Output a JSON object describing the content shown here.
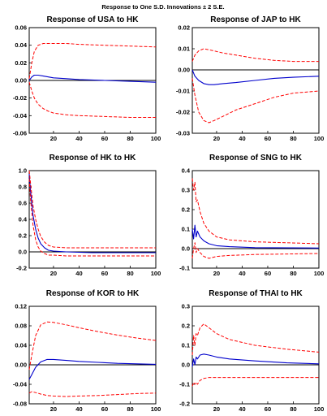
{
  "title": "Response to One S.D. Innovations ± 2 S.E.",
  "colors": {
    "response": "#0000cc",
    "band": "#ff0000",
    "zero": "#000000",
    "frame": "#000000"
  },
  "chart_data": [
    {
      "type": "line",
      "title": "Response of USA to HK",
      "x_ticks": [
        20,
        40,
        60,
        80,
        100
      ],
      "y_ticks": [
        -0.06,
        -0.04,
        -0.02,
        0.0,
        0.02,
        0.04,
        0.06
      ],
      "y_tick_labels": [
        "-0.06",
        "-0.04",
        "-0.02",
        "0.00",
        "0.02",
        "0.04",
        "0.06"
      ],
      "xlim": [
        1,
        100
      ],
      "ylim": [
        -0.06,
        0.06
      ],
      "x": [
        1,
        3,
        5,
        8,
        12,
        16,
        20,
        30,
        40,
        60,
        80,
        100
      ],
      "series": [
        {
          "role": "response",
          "values": [
            0.0,
            0.004,
            0.006,
            0.006,
            0.005,
            0.004,
            0.003,
            0.002,
            0.001,
            0.0,
            -0.001,
            -0.002
          ]
        },
        {
          "role": "upper",
          "values": [
            0.002,
            0.02,
            0.033,
            0.04,
            0.042,
            0.042,
            0.042,
            0.042,
            0.041,
            0.04,
            0.039,
            0.038
          ]
        },
        {
          "role": "lower",
          "values": [
            -0.002,
            -0.012,
            -0.02,
            -0.027,
            -0.032,
            -0.035,
            -0.037,
            -0.039,
            -0.04,
            -0.041,
            -0.042,
            -0.042
          ]
        }
      ]
    },
    {
      "type": "line",
      "title": "Response of JAP to HK",
      "x_ticks": [
        20,
        40,
        60,
        80,
        100
      ],
      "y_ticks": [
        -0.03,
        -0.02,
        -0.01,
        0.0,
        0.01,
        0.02
      ],
      "y_tick_labels": [
        "-0.03",
        "-0.02",
        "-0.01",
        "0.00",
        "0.01",
        "0.02"
      ],
      "xlim": [
        1,
        100
      ],
      "ylim": [
        -0.03,
        0.02
      ],
      "x": [
        1,
        3,
        6,
        10,
        14,
        18,
        25,
        35,
        50,
        65,
        80,
        100
      ],
      "series": [
        {
          "role": "response",
          "values": [
            0.0,
            -0.003,
            -0.005,
            -0.0065,
            -0.007,
            -0.007,
            -0.0065,
            -0.006,
            -0.005,
            -0.004,
            -0.0035,
            -0.003
          ]
        },
        {
          "role": "upper",
          "values": [
            0.004,
            0.007,
            0.009,
            0.01,
            0.0095,
            0.009,
            0.008,
            0.007,
            0.0055,
            0.0045,
            0.004,
            0.004
          ]
        },
        {
          "role": "lower",
          "values": [
            -0.004,
            -0.012,
            -0.02,
            -0.024,
            -0.025,
            -0.024,
            -0.022,
            -0.019,
            -0.016,
            -0.013,
            -0.011,
            -0.01
          ]
        }
      ]
    },
    {
      "type": "line",
      "title": "Response of HK to HK",
      "x_ticks": [
        20,
        40,
        60,
        80,
        100
      ],
      "y_ticks": [
        -0.2,
        0.0,
        0.2,
        0.4,
        0.6,
        0.8,
        1.0
      ],
      "y_tick_labels": [
        "-0.2",
        "0.0",
        "0.2",
        "0.4",
        "0.6",
        "0.8",
        "1.0"
      ],
      "xlim": [
        1,
        100
      ],
      "ylim": [
        -0.2,
        1.0
      ],
      "x": [
        1,
        2,
        4,
        6,
        8,
        10,
        13,
        16,
        20,
        30,
        50,
        100
      ],
      "series": [
        {
          "role": "response",
          "values": [
            0.96,
            0.75,
            0.45,
            0.28,
            0.17,
            0.1,
            0.05,
            0.02,
            0.01,
            0.0,
            -0.01,
            -0.01
          ]
        },
        {
          "role": "upper",
          "values": [
            1.0,
            0.85,
            0.57,
            0.4,
            0.28,
            0.19,
            0.12,
            0.08,
            0.06,
            0.05,
            0.05,
            0.05
          ]
        },
        {
          "role": "lower",
          "values": [
            0.9,
            0.65,
            0.33,
            0.15,
            0.06,
            0.01,
            -0.02,
            -0.04,
            -0.04,
            -0.05,
            -0.05,
            -0.05
          ]
        }
      ]
    },
    {
      "type": "line",
      "title": "Response of SNG to HK",
      "x_ticks": [
        20,
        40,
        60,
        80,
        100
      ],
      "y_ticks": [
        -0.1,
        0.0,
        0.1,
        0.2,
        0.3,
        0.4
      ],
      "y_tick_labels": [
        "-0.1",
        "0.0",
        "0.1",
        "0.2",
        "0.3",
        "0.4"
      ],
      "xlim": [
        1,
        100
      ],
      "ylim": [
        -0.1,
        0.4
      ],
      "x": [
        1,
        2,
        3,
        4,
        5,
        7,
        10,
        14,
        20,
        30,
        50,
        100
      ],
      "series": [
        {
          "role": "response",
          "values": [
            0.1,
            0.05,
            0.12,
            0.06,
            0.09,
            0.06,
            0.04,
            0.025,
            0.015,
            0.01,
            0.005,
            0.003
          ]
        },
        {
          "role": "upper",
          "values": [
            0.36,
            0.3,
            0.34,
            0.24,
            0.25,
            0.19,
            0.13,
            0.09,
            0.06,
            0.045,
            0.035,
            0.025
          ]
        },
        {
          "role": "lower",
          "values": [
            -0.05,
            0.0,
            0.03,
            -0.02,
            0.0,
            -0.02,
            -0.04,
            -0.05,
            -0.04,
            -0.035,
            -0.03,
            -0.025
          ]
        }
      ]
    },
    {
      "type": "line",
      "title": "Response of KOR to HK",
      "x_ticks": [
        20,
        40,
        60,
        80,
        100
      ],
      "y_ticks": [
        -0.08,
        -0.04,
        0.0,
        0.04,
        0.08,
        0.12
      ],
      "y_tick_labels": [
        "-0.08",
        "-0.04",
        "0.00",
        "0.04",
        "0.08",
        "0.12"
      ],
      "xlim": [
        1,
        100
      ],
      "ylim": [
        -0.08,
        0.12
      ],
      "x": [
        1,
        3,
        6,
        10,
        15,
        20,
        30,
        40,
        55,
        70,
        85,
        100
      ],
      "series": [
        {
          "role": "response",
          "values": [
            -0.03,
            -0.02,
            -0.005,
            0.006,
            0.011,
            0.011,
            0.009,
            0.007,
            0.005,
            0.003,
            0.002,
            0.001
          ]
        },
        {
          "role": "upper",
          "values": [
            -0.01,
            0.02,
            0.06,
            0.082,
            0.088,
            0.087,
            0.082,
            0.076,
            0.068,
            0.061,
            0.055,
            0.05
          ]
        },
        {
          "role": "lower",
          "values": [
            -0.058,
            -0.055,
            -0.057,
            -0.06,
            -0.063,
            -0.064,
            -0.065,
            -0.064,
            -0.063,
            -0.061,
            -0.059,
            -0.058
          ]
        }
      ]
    },
    {
      "type": "line",
      "title": "Response of THAI to HK",
      "x_ticks": [
        20,
        40,
        60,
        80,
        100
      ],
      "y_ticks": [
        -0.2,
        -0.1,
        0.0,
        0.1,
        0.2,
        0.3
      ],
      "y_tick_labels": [
        "-0.2",
        "-0.1",
        "0.0",
        "0.1",
        "0.2",
        "0.3"
      ],
      "xlim": [
        1,
        100
      ],
      "ylim": [
        -0.2,
        0.3
      ],
      "x": [
        1,
        2,
        3,
        4,
        5,
        7,
        10,
        14,
        20,
        30,
        50,
        75,
        100
      ],
      "series": [
        {
          "role": "response",
          "values": [
            -0.01,
            0.03,
            0.0,
            0.04,
            0.03,
            0.05,
            0.055,
            0.05,
            0.04,
            0.03,
            0.02,
            0.01,
            0.005
          ]
        },
        {
          "role": "upper",
          "values": [
            0.05,
            0.15,
            0.1,
            0.16,
            0.15,
            0.19,
            0.21,
            0.19,
            0.16,
            0.13,
            0.1,
            0.08,
            0.065
          ]
        },
        {
          "role": "lower",
          "values": [
            -0.11,
            -0.09,
            -0.1,
            -0.09,
            -0.1,
            -0.08,
            -0.07,
            -0.065,
            -0.065,
            -0.065,
            -0.065,
            -0.065,
            -0.065
          ]
        }
      ]
    }
  ]
}
